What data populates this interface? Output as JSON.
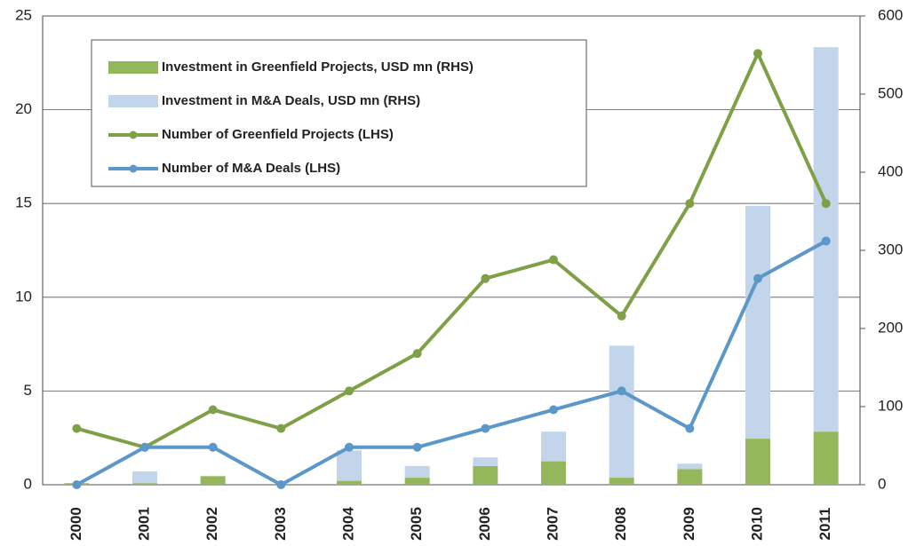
{
  "chart_data": {
    "type": "bar_line",
    "categories": [
      "2000",
      "2001",
      "2002",
      "2003",
      "2004",
      "2005",
      "2006",
      "2007",
      "2008",
      "2009",
      "2010",
      "2011"
    ],
    "series": [
      {
        "name": "Investment in Greenfield Projects, USD mn (RHS)",
        "kind": "bar",
        "axis": "y2",
        "color": "#93b75a",
        "values": [
          2,
          2,
          11,
          0,
          5,
          9,
          24,
          30,
          9,
          20,
          59,
          68
        ]
      },
      {
        "name": "Investment in M&A Deals, USD mn (RHS)",
        "kind": "bar",
        "axis": "y2",
        "color": "#c2d5ea",
        "values": [
          0,
          15,
          0,
          0,
          39,
          15,
          11,
          38,
          169,
          7,
          298,
          492
        ]
      },
      {
        "name": "Number of Greenfield Projects (LHS)",
        "kind": "line",
        "color": "#7fa046",
        "values": [
          3,
          2,
          4,
          3,
          5,
          7,
          11,
          12,
          9,
          15,
          23,
          15
        ]
      },
      {
        "name": "Number of M&A Deals (LHS)",
        "kind": "line",
        "color": "#5b97c9",
        "values": [
          0,
          2,
          2,
          0,
          2,
          2,
          3,
          4,
          5,
          3,
          11,
          13
        ]
      }
    ],
    "ylim": [
      0,
      25
    ],
    "yticks": [
      0,
      5,
      10,
      15,
      20,
      25
    ],
    "y2lim": [
      0,
      600
    ],
    "y2ticks": [
      0,
      100,
      200,
      300,
      400,
      500,
      600
    ],
    "grid": true
  }
}
